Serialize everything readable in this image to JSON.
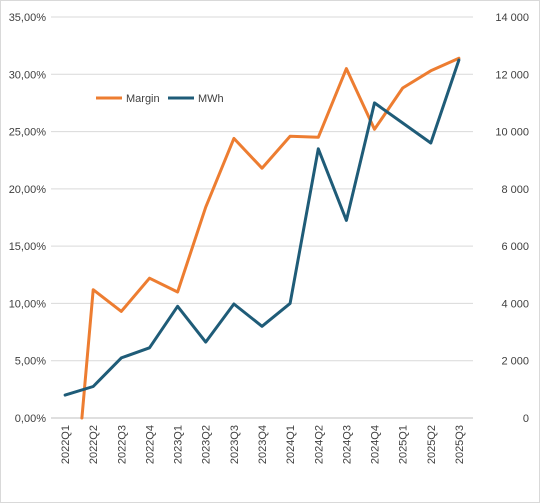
{
  "chart_data": {
    "type": "line",
    "categories": [
      "2022Q1",
      "2022Q2",
      "2022Q3",
      "2022Q4",
      "2023Q1",
      "2023Q2",
      "2023Q3",
      "2023Q4",
      "2024Q1",
      "2024Q2",
      "2024Q3",
      "2024Q4",
      "2025Q1",
      "2025Q2",
      "2025Q3"
    ],
    "series": [
      {
        "name": "Margin",
        "axis": "left",
        "color": "#ED7D31",
        "values": [
          null,
          11.2,
          9.3,
          12.2,
          11.0,
          18.4,
          24.4,
          21.8,
          24.6,
          24.5,
          30.5,
          25.2,
          28.8,
          30.3,
          31.4
        ]
      },
      {
        "name": "MWh",
        "axis": "right",
        "color": "#1F5C78",
        "values": [
          800,
          1100,
          2100,
          2450,
          3900,
          2650,
          3980,
          3200,
          4000,
          9400,
          6900,
          11000,
          10300,
          9600,
          12500
        ]
      }
    ],
    "y_left": {
      "min": 0,
      "max": 35,
      "ticks": [
        "0,00%",
        "5,00%",
        "10,00%",
        "15,00%",
        "20,00%",
        "25,00%",
        "30,00%",
        "35,00%"
      ]
    },
    "y_right": {
      "min": 0,
      "max": 14000,
      "ticks": [
        "0",
        "2 000",
        "4 000",
        "6 000",
        "8 000",
        "10 000",
        "12 000",
        "14 000"
      ]
    },
    "grid": true,
    "legend": {
      "placement": "top-left",
      "entries": [
        "Margin",
        "MWh"
      ]
    },
    "title": "",
    "xlabel": "",
    "ylabel": ""
  }
}
